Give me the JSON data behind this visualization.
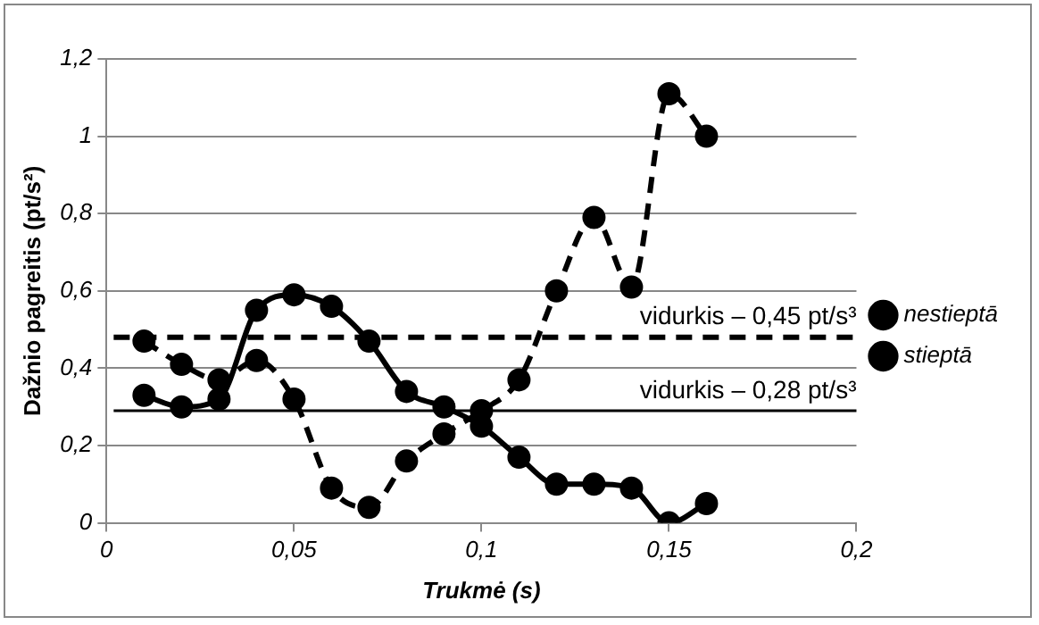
{
  "chart_data": {
    "type": "line",
    "xlabel": "Trukmė (s)",
    "ylabel": "Dažnio pagreitis (pt/s²)",
    "x": [
      0.01,
      0.02,
      0.03,
      0.04,
      0.05,
      0.06,
      0.07,
      0.08,
      0.09,
      0.1,
      0.11,
      0.12,
      0.13,
      0.14,
      0.15,
      0.16
    ],
    "series": [
      {
        "name": "nestieptā",
        "color": "#000000",
        "line_style": "dashed",
        "values": [
          0.47,
          0.41,
          0.37,
          0.42,
          0.32,
          0.09,
          0.04,
          0.16,
          0.23,
          0.29,
          0.37,
          0.6,
          0.79,
          0.61,
          1.11,
          1.0
        ]
      },
      {
        "name": "stieptā",
        "color": "#000000",
        "line_style": "solid",
        "values": [
          0.33,
          0.3,
          0.32,
          0.55,
          0.59,
          0.56,
          0.47,
          0.34,
          0.3,
          0.25,
          0.17,
          0.1,
          0.1,
          0.09,
          0.0,
          0.05
        ]
      }
    ],
    "xlim": [
      0,
      0.2
    ],
    "xticks": [
      0,
      {
        "value": 0.05,
        "label": "0,05"
      },
      {
        "value": 0.1,
        "label": "0,1"
      },
      {
        "value": 0.15,
        "label": "0,15"
      },
      {
        "value": 0.2,
        "label": "0,2"
      }
    ],
    "ylim": [
      0,
      1.2
    ],
    "yticks": [
      0,
      {
        "value": 0.2,
        "label": "0,2"
      },
      {
        "value": 0.4,
        "label": "0,4"
      },
      {
        "value": 0.6,
        "label": "0,6"
      },
      {
        "value": 0.8,
        "label": "0,8"
      },
      1,
      {
        "value": 1.2,
        "label": "1,2"
      }
    ],
    "ref_lines": [
      {
        "axis": "y",
        "value": 0.48,
        "label": "vidurkis – 0,45 pt/s³",
        "color": "#000000",
        "line_style": "dashed"
      },
      {
        "axis": "y",
        "value": 0.29,
        "label": "vidurkis – 0,28 pt/s³",
        "color": "#000000",
        "line_style": "solid"
      }
    ],
    "grid": "y",
    "legend": "right",
    "marker": "circle"
  }
}
